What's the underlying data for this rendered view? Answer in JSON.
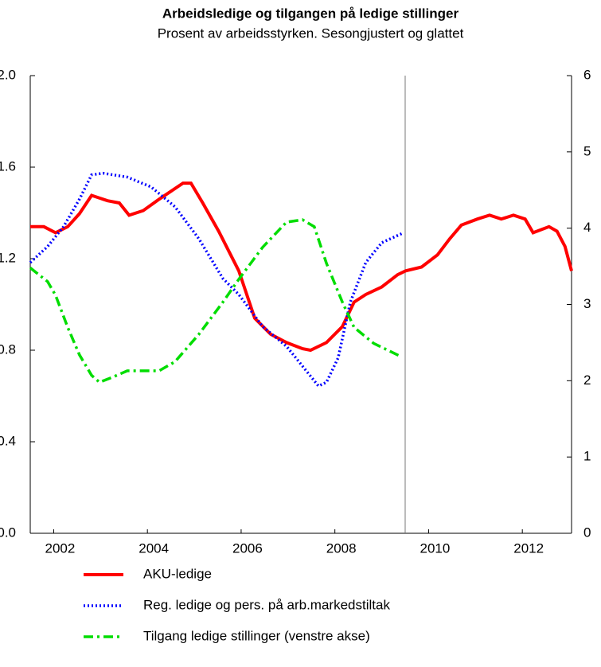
{
  "chart_data": {
    "type": "line",
    "title": "Arbeidsledige og tilgangen på ledige stillinger",
    "subtitle": "Prosent av arbeidsstyrken. Sesongjustert og glattet",
    "xlim": [
      2002.0,
      2013.55
    ],
    "xticks": [
      {
        "value": 2002.5,
        "label": "2002"
      },
      {
        "value": 2004.5,
        "label": "2004"
      },
      {
        "value": 2006.5,
        "label": "2006"
      },
      {
        "value": 2008.5,
        "label": "2008"
      },
      {
        "value": 2010.5,
        "label": "2010"
      },
      {
        "value": 2012.5,
        "label": "2012"
      }
    ],
    "ylim": [
      0,
      2
    ],
    "yticks": [
      {
        "value": 0,
        "label": "0.0"
      },
      0.4,
      0.8,
      1.2,
      1.6,
      {
        "value": 2,
        "label": "2.0"
      }
    ],
    "y2lim": [
      0,
      6
    ],
    "y2ticks": [
      0,
      1,
      2,
      3,
      4,
      5,
      6
    ],
    "vline": 2010.0,
    "series": [
      {
        "name": "AKU-ledige",
        "color": "#ff0000",
        "style": "solid",
        "axis": "y2",
        "x": [
          2002.0,
          2002.29,
          2002.54,
          2002.8,
          2003.05,
          2003.31,
          2003.65,
          2003.9,
          2004.11,
          2004.41,
          2004.75,
          2005.26,
          2005.43,
          2005.68,
          2006.02,
          2006.45,
          2006.79,
          2007.13,
          2007.47,
          2007.81,
          2007.98,
          2008.32,
          2008.66,
          2008.91,
          2009.16,
          2009.5,
          2009.84,
          2010.01,
          2010.35,
          2010.69,
          2010.95,
          2011.2,
          2011.54,
          2011.8,
          2012.05,
          2012.31,
          2012.56,
          2012.73,
          2013.07,
          2013.24,
          2013.41,
          2013.55
        ],
        "values": [
          4.02,
          4.02,
          3.94,
          4.02,
          4.19,
          4.43,
          4.36,
          4.33,
          4.17,
          4.23,
          4.38,
          4.59,
          4.59,
          4.33,
          3.96,
          3.44,
          2.82,
          2.61,
          2.5,
          2.42,
          2.4,
          2.5,
          2.71,
          3.03,
          3.13,
          3.23,
          3.39,
          3.44,
          3.49,
          3.65,
          3.86,
          4.04,
          4.12,
          4.17,
          4.12,
          4.17,
          4.12,
          3.94,
          4.02,
          3.96,
          3.76,
          3.44
        ]
      },
      {
        "name": "Reg. ledige og pers. på arb.markedstiltak",
        "color": "#0000ff",
        "style": "dotted",
        "axis": "y2",
        "x": [
          2002.0,
          2002.37,
          2002.71,
          2003.05,
          2003.31,
          2003.56,
          2004.07,
          2004.58,
          2005.09,
          2005.6,
          2006.11,
          2006.45,
          2006.96,
          2007.47,
          2007.81,
          2008.15,
          2008.32,
          2008.57,
          2008.83,
          2009.16,
          2009.5,
          2009.93
        ],
        "values": [
          3.55,
          3.76,
          4.02,
          4.38,
          4.7,
          4.72,
          4.67,
          4.54,
          4.28,
          3.86,
          3.34,
          3.13,
          2.71,
          2.45,
          2.19,
          1.93,
          1.98,
          2.3,
          3.03,
          3.55,
          3.81,
          3.93
        ]
      },
      {
        "name": "Tilgang ledige stillinger (venstre akse)",
        "color": "#00dd00",
        "style": "dashdot",
        "axis": "y",
        "x": [
          2002.0,
          2002.37,
          2002.54,
          2002.8,
          2003.05,
          2003.31,
          2003.48,
          2003.73,
          2004.07,
          2004.41,
          2004.75,
          2005.09,
          2005.6,
          2006.11,
          2006.45,
          2006.96,
          2007.47,
          2007.81,
          2008.06,
          2008.32,
          2008.66,
          2008.91,
          2009.33,
          2009.93
        ],
        "values": [
          1.16,
          1.1,
          1.04,
          0.9,
          0.78,
          0.69,
          0.66,
          0.68,
          0.71,
          0.71,
          0.71,
          0.75,
          0.87,
          1.01,
          1.11,
          1.25,
          1.36,
          1.37,
          1.34,
          1.18,
          1.01,
          0.9,
          0.83,
          0.77
        ]
      }
    ]
  }
}
